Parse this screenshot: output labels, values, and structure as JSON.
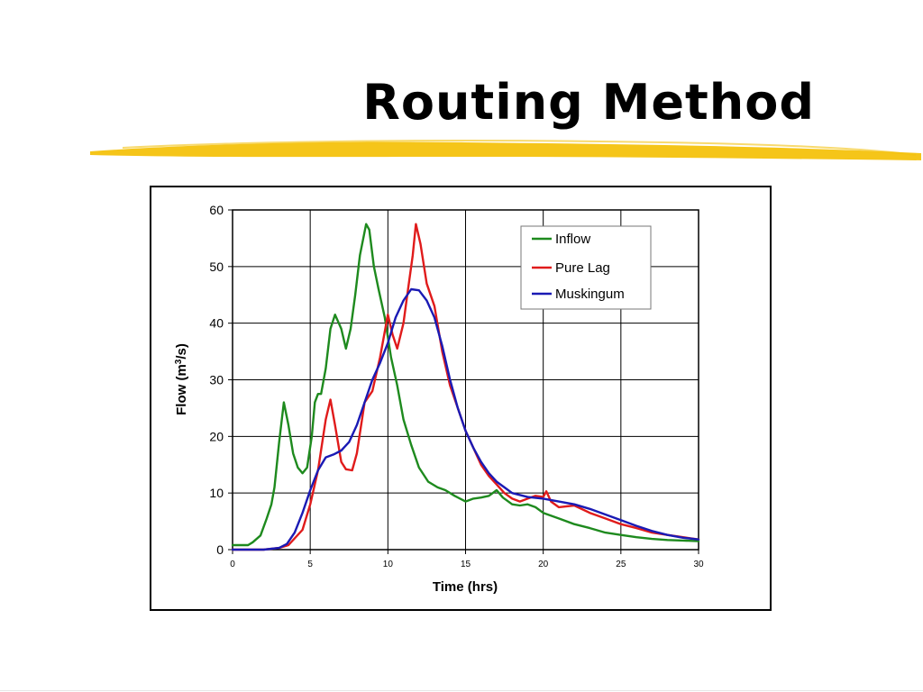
{
  "slide": {
    "title": "Routing Method"
  },
  "colors": {
    "underline": "#f4c20d",
    "inflow": "#1e8a1e",
    "pure_lag": "#e01b1b",
    "muskingum": "#1a1ab4"
  },
  "chart_data": {
    "type": "line",
    "title": "",
    "xlabel": "Time (hrs)",
    "ylabel_main": "Flow (m",
    "ylabel_sup": "3",
    "ylabel_end": "/s)",
    "xlim": [
      0,
      30
    ],
    "ylim": [
      0,
      60
    ],
    "x_ticks": [
      "0",
      "5",
      "10",
      "15",
      "20",
      "25",
      "30"
    ],
    "y_ticks": [
      "0",
      "10",
      "20",
      "30",
      "40",
      "50",
      "60"
    ],
    "grid": true,
    "legend_position": "top-right",
    "series": [
      {
        "name": "Inflow",
        "color": "#1e8a1e",
        "x": [
          0,
          1,
          1.3,
          1.8,
          2.2,
          2.5,
          2.7,
          3.0,
          3.3,
          3.6,
          3.9,
          4.2,
          4.5,
          4.8,
          5.1,
          5.3,
          5.5,
          5.7,
          6.0,
          6.3,
          6.6,
          7.0,
          7.3,
          7.6,
          7.9,
          8.2,
          8.6,
          8.8,
          9.1,
          9.4,
          9.8,
          10.2,
          10.6,
          11.0,
          11.5,
          12.0,
          12.6,
          13.2,
          13.7,
          14.3,
          15.0,
          15.5,
          16.0,
          16.5,
          17.0,
          17.4,
          18.0,
          18.5,
          19.0,
          19.5,
          20.0,
          21,
          22,
          23,
          24,
          25,
          26,
          27,
          28,
          29,
          30
        ],
        "y": [
          0.8,
          0.8,
          1.3,
          2.5,
          5.5,
          8.0,
          11,
          19,
          26,
          22,
          17,
          14.5,
          13.5,
          14.5,
          20,
          26,
          27.5,
          27.5,
          32,
          39,
          41.5,
          39,
          35.5,
          39,
          45,
          52,
          57.5,
          56.5,
          50,
          46,
          41,
          34,
          29,
          23,
          18.5,
          14.5,
          12,
          11,
          10.5,
          9.5,
          8.5,
          9,
          9.2,
          9.5,
          10.5,
          9.2,
          8,
          7.8,
          8,
          7.5,
          6.5,
          5.5,
          4.5,
          3.8,
          3.0,
          2.6,
          2.2,
          1.9,
          1.7,
          1.6,
          1.5
        ]
      },
      {
        "name": "Pure Lag",
        "color": "#e01b1b",
        "x": [
          0,
          2,
          3,
          3.6,
          4.5,
          5.0,
          5.5,
          6.0,
          6.3,
          6.6,
          7.0,
          7.3,
          7.7,
          8.0,
          8.5,
          9.0,
          9.5,
          10.0,
          10.3,
          10.6,
          11.0,
          11.3,
          11.6,
          11.8,
          12.1,
          12.5,
          13.0,
          13.5,
          14.0,
          14.5,
          15.0,
          15.5,
          16.0,
          16.5,
          17.0,
          17.5,
          18.0,
          18.5,
          19.0,
          19.5,
          20.0,
          20.2,
          20.5,
          21,
          22,
          23,
          24,
          25,
          26,
          27,
          28,
          29,
          30
        ],
        "y": [
          0,
          0,
          0.3,
          0.8,
          3.5,
          8,
          14,
          23,
          26.5,
          22,
          15.5,
          14.2,
          14,
          17,
          26,
          28,
          34,
          41.5,
          38,
          35.5,
          40,
          46,
          52,
          57.5,
          54,
          47,
          43,
          35,
          29,
          25,
          21,
          18,
          15,
          13,
          11.5,
          10,
          9,
          8.5,
          9,
          9.5,
          9.3,
          10.3,
          8.5,
          7.5,
          7.8,
          6.5,
          5.5,
          4.5,
          3.8,
          3.0,
          2.6,
          2.2,
          1.8
        ]
      },
      {
        "name": "Muskingum",
        "color": "#1a1ab4",
        "x": [
          0,
          2,
          3,
          3.5,
          4,
          4.5,
          5,
          5.5,
          6,
          6.5,
          7,
          7.5,
          8,
          8.5,
          9,
          9.5,
          10,
          10.5,
          11,
          11.5,
          12,
          12.5,
          13,
          13.5,
          14,
          14.5,
          15,
          15.5,
          16,
          16.5,
          17,
          17.5,
          18,
          19,
          20,
          21,
          22,
          23,
          24,
          25,
          26,
          27,
          28,
          29,
          30
        ],
        "y": [
          0,
          0,
          0.3,
          1,
          3,
          6.5,
          10.5,
          14,
          16.3,
          16.8,
          17.5,
          19,
          22,
          26,
          30,
          33,
          36.5,
          41,
          44,
          46,
          45.8,
          44,
          41,
          36,
          30,
          25,
          21,
          18,
          15.5,
          13.5,
          12,
          11,
          10,
          9.3,
          9,
          8.5,
          8,
          7.2,
          6.2,
          5.2,
          4.2,
          3.3,
          2.6,
          2.1,
          1.8
        ]
      }
    ]
  }
}
